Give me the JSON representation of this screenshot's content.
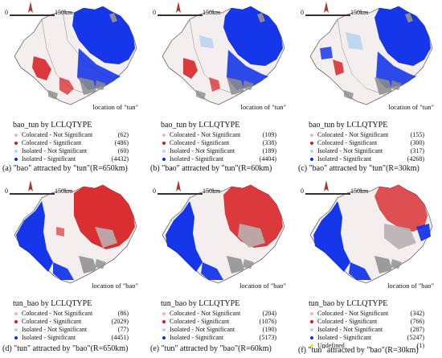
{
  "common": {
    "scale_zero": "0",
    "scale_distance": "150km"
  },
  "panels": [
    {
      "id": "a",
      "location_label": "location of \"tun\"",
      "legend_title": "bao_tun by LCLQTYPE",
      "legend": [
        {
          "label": "Colocated - Not Significant",
          "count": "(62)",
          "color": "#f0b7b7"
        },
        {
          "label": "Colocated - Significant",
          "count": "(486)",
          "color": "#d7191c"
        },
        {
          "label": "Isolated - Not Significant",
          "count": "(60)",
          "color": "#b9d4f0"
        },
        {
          "label": "Isolated - Significant",
          "count": "(4432)",
          "color": "#0a2ce8"
        }
      ],
      "caption": "(a) \"bao\" attracted by \"tun\"(R=650km)"
    },
    {
      "id": "b",
      "location_label": "location of \"tun\"",
      "legend_title": "bao_tun by LCLQTYPE",
      "legend": [
        {
          "label": "Colocated - Not Significant",
          "count": "(109)",
          "color": "#f0b7b7"
        },
        {
          "label": "Colocated - Significant",
          "count": "(338)",
          "color": "#d7191c"
        },
        {
          "label": "Isolated - Not Significant",
          "count": "(189)",
          "color": "#b9d4f0"
        },
        {
          "label": "Isolated - Significant",
          "count": "(4404)",
          "color": "#0a2ce8"
        }
      ],
      "caption": "(b) \"bao\" attracted by \"tun\"(R=60km)"
    },
    {
      "id": "c",
      "location_label": "location of \"tun\"",
      "legend_title": "bao_tun by LCLQTYPE",
      "legend": [
        {
          "label": "Colocated - Not Significant",
          "count": "(155)",
          "color": "#f0b7b7"
        },
        {
          "label": "Colocated - Significant",
          "count": "(300)",
          "color": "#d7191c"
        },
        {
          "label": "Isolated - Not Significant",
          "count": "(317)",
          "color": "#b9d4f0"
        },
        {
          "label": "Isolated - Significant",
          "count": "(4268)",
          "color": "#0a2ce8"
        }
      ],
      "caption": "(c) \"bao\" attracted by \"tun\"(R=30km)"
    },
    {
      "id": "d",
      "location_label": "location of \"bao\"",
      "legend_title": "tun_bao by LCLQTYPE",
      "legend": [
        {
          "label": "Colocated - Not Significant",
          "count": "(86)",
          "color": "#f0b7b7"
        },
        {
          "label": "Colocated - Significant",
          "count": "(2029)",
          "color": "#d7191c"
        },
        {
          "label": "Isolated - Not Significant",
          "count": "(77)",
          "color": "#b9d4f0"
        },
        {
          "label": "Isolated - Significant",
          "count": "(4451)",
          "color": "#0a2ce8"
        }
      ],
      "caption": "(d) \"tun\" attracted by \"bao\"(R=650km)"
    },
    {
      "id": "e",
      "location_label": "location of \"bao\"",
      "legend_title": "tun_bao by LCLQTYPE",
      "legend": [
        {
          "label": "Colocated - Not Significant",
          "count": "(204)",
          "color": "#f0b7b7"
        },
        {
          "label": "Colocated - Significant",
          "count": "(1076)",
          "color": "#d7191c"
        },
        {
          "label": "Isolated - Not Significant",
          "count": "(190)",
          "color": "#b9d4f0"
        },
        {
          "label": "Isolated - Significant",
          "count": "(5173)",
          "color": "#0a2ce8"
        }
      ],
      "caption": "(e) \"tun\" attracted by \"bao\"(R=60km)"
    },
    {
      "id": "f",
      "location_label": "location of \"bao\"",
      "legend_title": "tun_bao by LCLQTYPE",
      "legend": [
        {
          "label": "Colocated - Not Significant",
          "count": "(342)",
          "color": "#f0b7b7"
        },
        {
          "label": "Colocated - Significant",
          "count": "(766)",
          "color": "#d7191c"
        },
        {
          "label": "Isolated - Not Significant",
          "count": "(287)",
          "color": "#b9d4f0"
        },
        {
          "label": "Isolated - Significant",
          "count": "(5247)",
          "color": "#0a2ce8"
        },
        {
          "label": "Undefined",
          "count": "(1)",
          "color": "#f2e03a"
        }
      ],
      "caption": "(f) \"tun\" attracted by \"bao\"(R=30km)"
    }
  ]
}
